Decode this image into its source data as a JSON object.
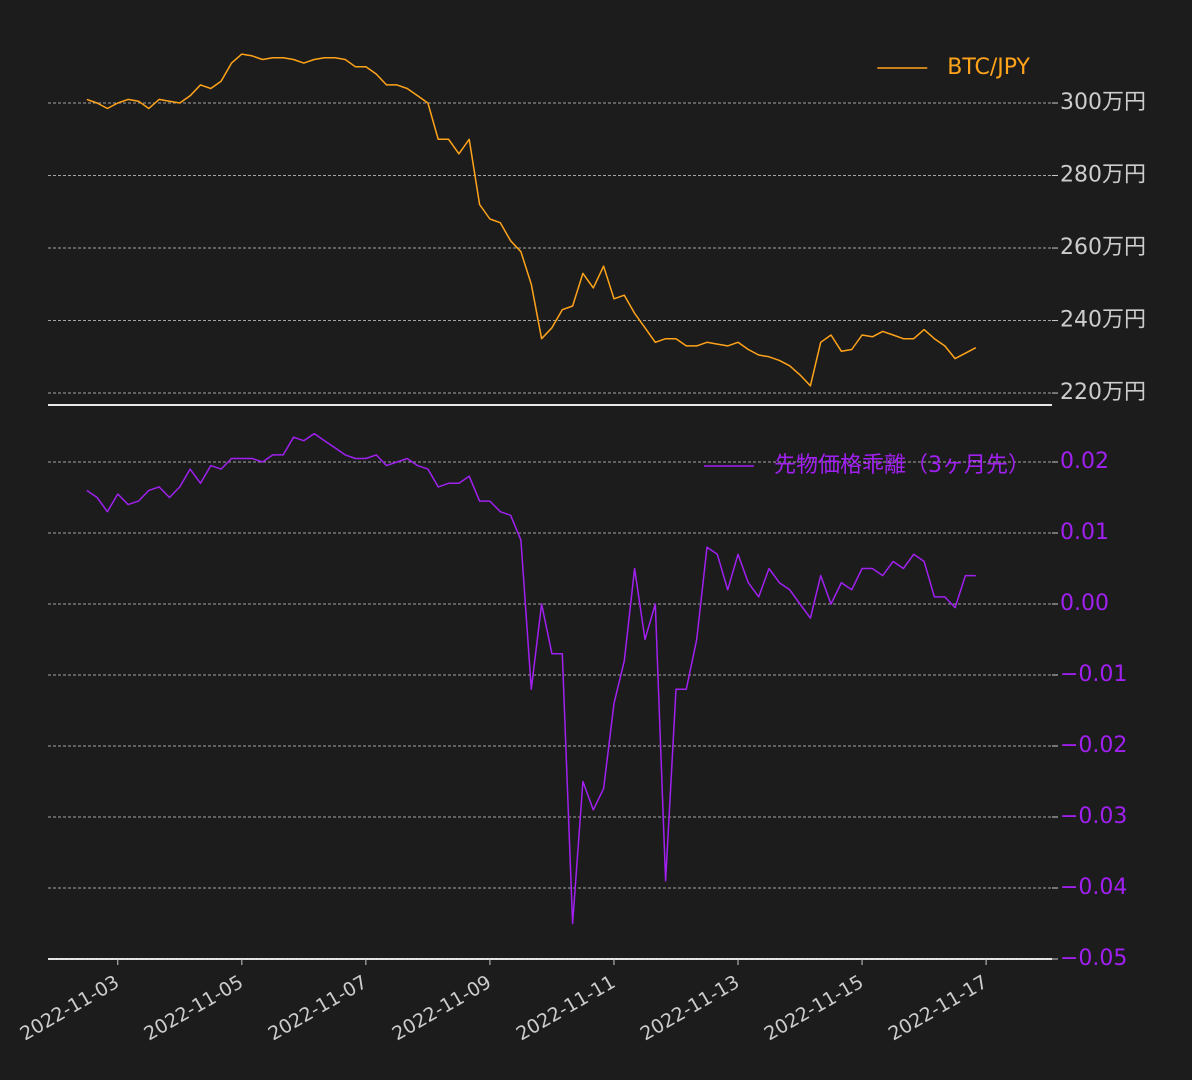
{
  "chart_data": [
    {
      "type": "line",
      "grid": true,
      "legend": "upper right",
      "ytick_color": "#cccccc",
      "xlim": [
        "2022-11-01T21:00",
        "2022-11-18T01:30"
      ],
      "ylim": [
        2167000,
        3229000
      ],
      "yticks": [
        {
          "value": 2200000,
          "label": "220万円"
        },
        {
          "value": 2400000,
          "label": "240万円"
        },
        {
          "value": 2600000,
          "label": "260万円"
        },
        {
          "value": 2800000,
          "label": "280万円"
        },
        {
          "value": 3000000,
          "label": "300万円"
        }
      ],
      "x": [
        "2022-11-02T12:00",
        "2022-11-02T16:00",
        "2022-11-02T20:00",
        "2022-11-03T00:00",
        "2022-11-03T04:00",
        "2022-11-03T08:00",
        "2022-11-03T12:00",
        "2022-11-03T16:00",
        "2022-11-03T20:00",
        "2022-11-04T00:00",
        "2022-11-04T04:00",
        "2022-11-04T08:00",
        "2022-11-04T12:00",
        "2022-11-04T16:00",
        "2022-11-04T20:00",
        "2022-11-05T00:00",
        "2022-11-05T04:00",
        "2022-11-05T08:00",
        "2022-11-05T12:00",
        "2022-11-05T16:00",
        "2022-11-05T20:00",
        "2022-11-06T00:00",
        "2022-11-06T04:00",
        "2022-11-06T08:00",
        "2022-11-06T12:00",
        "2022-11-06T16:00",
        "2022-11-06T20:00",
        "2022-11-07T00:00",
        "2022-11-07T04:00",
        "2022-11-07T08:00",
        "2022-11-07T12:00",
        "2022-11-07T16:00",
        "2022-11-07T20:00",
        "2022-11-08T00:00",
        "2022-11-08T04:00",
        "2022-11-08T08:00",
        "2022-11-08T12:00",
        "2022-11-08T16:00",
        "2022-11-08T20:00",
        "2022-11-09T00:00",
        "2022-11-09T04:00",
        "2022-11-09T08:00",
        "2022-11-09T12:00",
        "2022-11-09T16:00",
        "2022-11-09T20:00",
        "2022-11-10T00:00",
        "2022-11-10T04:00",
        "2022-11-10T08:00",
        "2022-11-10T12:00",
        "2022-11-10T16:00",
        "2022-11-10T20:00",
        "2022-11-11T00:00",
        "2022-11-11T04:00",
        "2022-11-11T08:00",
        "2022-11-11T12:00",
        "2022-11-11T16:00",
        "2022-11-11T20:00",
        "2022-11-12T00:00",
        "2022-11-12T04:00",
        "2022-11-12T08:00",
        "2022-11-12T12:00",
        "2022-11-12T16:00",
        "2022-11-12T20:00",
        "2022-11-13T00:00",
        "2022-11-13T04:00",
        "2022-11-13T08:00",
        "2022-11-13T12:00",
        "2022-11-13T16:00",
        "2022-11-13T20:00",
        "2022-11-14T00:00",
        "2022-11-14T04:00",
        "2022-11-14T08:00",
        "2022-11-14T12:00",
        "2022-11-14T16:00",
        "2022-11-14T20:00",
        "2022-11-15T00:00",
        "2022-11-15T04:00",
        "2022-11-15T08:00",
        "2022-11-15T12:00",
        "2022-11-15T16:00",
        "2022-11-15T20:00",
        "2022-11-16T00:00",
        "2022-11-16T04:00",
        "2022-11-16T08:00",
        "2022-11-16T12:00",
        "2022-11-16T16:00",
        "2022-11-16T20:00"
      ],
      "series": [
        {
          "name": "BTC/JPY",
          "color": "#ffa31a",
          "values": [
            3010000,
            3000000,
            2985000,
            3000000,
            3010000,
            3005000,
            2985000,
            3010000,
            3005000,
            3000000,
            3020000,
            3050000,
            3040000,
            3060000,
            3110000,
            3135000,
            3130000,
            3120000,
            3125000,
            3125000,
            3120000,
            3110000,
            3120000,
            3125000,
            3125000,
            3120000,
            3100000,
            3100000,
            3080000,
            3050000,
            3050000,
            3040000,
            3020000,
            3000000,
            2900000,
            2900000,
            2860000,
            2900000,
            2720000,
            2680000,
            2670000,
            2620000,
            2590000,
            2500000,
            2350000,
            2380000,
            2430000,
            2440000,
            2530000,
            2490000,
            2550000,
            2460000,
            2470000,
            2420000,
            2380000,
            2340000,
            2350000,
            2350000,
            2330000,
            2330000,
            2340000,
            2335000,
            2330000,
            2340000,
            2320000,
            2305000,
            2300000,
            2290000,
            2275000,
            2250000,
            2220000,
            2340000,
            2360000,
            2315000,
            2320000,
            2360000,
            2355000,
            2370000,
            2360000,
            2350000,
            2350000,
            2375000,
            2350000,
            2330000,
            2295000,
            2310000,
            2325000
          ]
        }
      ]
    },
    {
      "type": "line",
      "grid": true,
      "legend": "upper right",
      "ytick_color": "#a020f0",
      "xlim": [
        "2022-11-01T21:00",
        "2022-11-18T01:30"
      ],
      "ylim": [
        -0.05,
        0.0262
      ],
      "yticks": [
        {
          "value": -0.05,
          "label": "−0.05"
        },
        {
          "value": -0.04,
          "label": "−0.04"
        },
        {
          "value": -0.03,
          "label": "−0.03"
        },
        {
          "value": -0.02,
          "label": "−0.02"
        },
        {
          "value": -0.01,
          "label": "−0.01"
        },
        {
          "value": 0,
          "label": "0.00"
        },
        0.01,
        0.02
      ],
      "xticks": [
        "2022-11-03",
        "2022-11-05",
        "2022-11-07",
        "2022-11-09",
        "2022-11-11",
        "2022-11-13",
        "2022-11-15",
        "2022-11-17"
      ],
      "x": [
        "2022-11-02T12:00",
        "2022-11-02T16:00",
        "2022-11-02T20:00",
        "2022-11-03T00:00",
        "2022-11-03T04:00",
        "2022-11-03T08:00",
        "2022-11-03T12:00",
        "2022-11-03T16:00",
        "2022-11-03T20:00",
        "2022-11-04T00:00",
        "2022-11-04T04:00",
        "2022-11-04T08:00",
        "2022-11-04T12:00",
        "2022-11-04T16:00",
        "2022-11-04T20:00",
        "2022-11-05T00:00",
        "2022-11-05T04:00",
        "2022-11-05T08:00",
        "2022-11-05T12:00",
        "2022-11-05T16:00",
        "2022-11-05T20:00",
        "2022-11-06T00:00",
        "2022-11-06T04:00",
        "2022-11-06T08:00",
        "2022-11-06T12:00",
        "2022-11-06T16:00",
        "2022-11-06T20:00",
        "2022-11-07T00:00",
        "2022-11-07T04:00",
        "2022-11-07T08:00",
        "2022-11-07T12:00",
        "2022-11-07T16:00",
        "2022-11-07T20:00",
        "2022-11-08T00:00",
        "2022-11-08T04:00",
        "2022-11-08T08:00",
        "2022-11-08T12:00",
        "2022-11-08T16:00",
        "2022-11-08T20:00",
        "2022-11-09T00:00",
        "2022-11-09T04:00",
        "2022-11-09T08:00",
        "2022-11-09T12:00",
        "2022-11-09T16:00",
        "2022-11-09T20:00",
        "2022-11-10T00:00",
        "2022-11-10T04:00",
        "2022-11-10T08:00",
        "2022-11-10T12:00",
        "2022-11-10T16:00",
        "2022-11-10T20:00",
        "2022-11-11T00:00",
        "2022-11-11T04:00",
        "2022-11-11T08:00",
        "2022-11-11T12:00",
        "2022-11-11T16:00",
        "2022-11-11T20:00",
        "2022-11-12T00:00",
        "2022-11-12T04:00",
        "2022-11-12T08:00",
        "2022-11-12T12:00",
        "2022-11-12T16:00",
        "2022-11-12T20:00",
        "2022-11-13T00:00",
        "2022-11-13T04:00",
        "2022-11-13T08:00",
        "2022-11-13T12:00",
        "2022-11-13T16:00",
        "2022-11-13T20:00",
        "2022-11-14T00:00",
        "2022-11-14T04:00",
        "2022-11-14T08:00",
        "2022-11-14T12:00",
        "2022-11-14T16:00",
        "2022-11-14T20:00",
        "2022-11-15T00:00",
        "2022-11-15T04:00",
        "2022-11-15T08:00",
        "2022-11-15T12:00",
        "2022-11-15T16:00",
        "2022-11-15T20:00",
        "2022-11-16T00:00",
        "2022-11-16T04:00",
        "2022-11-16T08:00",
        "2022-11-16T12:00",
        "2022-11-16T16:00",
        "2022-11-16T20:00"
      ],
      "series": [
        {
          "name": "先物価格乖離（3ヶ月先）",
          "color": "#a020f0",
          "values": [
            0.016,
            0.015,
            0.013,
            0.0155,
            0.014,
            0.0145,
            0.016,
            0.0165,
            0.015,
            0.0165,
            0.019,
            0.017,
            0.0195,
            0.019,
            0.0205,
            0.0205,
            0.0205,
            0.02,
            0.021,
            0.021,
            0.0235,
            0.023,
            0.024,
            0.023,
            0.022,
            0.021,
            0.0205,
            0.0205,
            0.021,
            0.0195,
            0.02,
            0.0205,
            0.0195,
            0.019,
            0.0165,
            0.017,
            0.017,
            0.018,
            0.0145,
            0.0145,
            0.013,
            0.0125,
            0.009,
            -0.012,
            0.0,
            -0.007,
            -0.007,
            -0.045,
            -0.025,
            -0.029,
            -0.026,
            -0.014,
            -0.008,
            0.005,
            -0.005,
            0.0,
            -0.039,
            -0.012,
            -0.012,
            -0.005,
            0.008,
            0.007,
            0.002,
            0.007,
            0.003,
            0.001,
            0.005,
            0.003,
            0.002,
            0.0,
            -0.002,
            0.004,
            0.0,
            0.003,
            0.002,
            0.005,
            0.005,
            0.004,
            0.006,
            0.005,
            0.007,
            0.006,
            0.001,
            0.001,
            -0.0005,
            0.004,
            0.004
          ]
        }
      ]
    }
  ]
}
